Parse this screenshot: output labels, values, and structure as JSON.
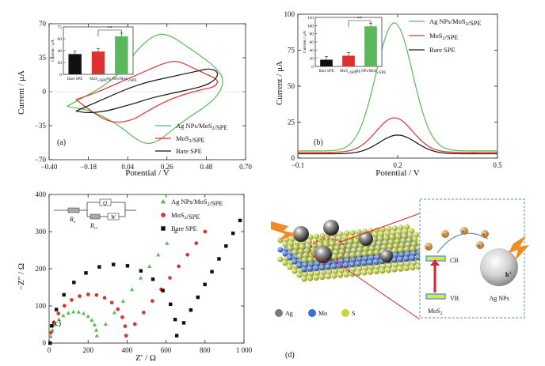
{
  "chart_data": [
    {
      "type": "line",
      "panel_label": "(a)",
      "xlabel": "Potential / V",
      "ylabel": "Current / μA",
      "xlim": [
        -0.4,
        0.7
      ],
      "ylim": [
        -70,
        70
      ],
      "xticks": [
        "−0.40",
        "−0.18",
        "0.04",
        "0.26",
        "0.48",
        "0.70"
      ],
      "yticks": [
        "−70",
        "−35",
        "0",
        "35",
        "70"
      ],
      "legend_position": "bottom-right",
      "series": [
        {
          "name": "Ag NPs/MoS₂/SPE",
          "color": "#5cb85c",
          "x": [
            -0.3,
            -0.2,
            -0.1,
            0.0,
            0.1,
            0.2,
            0.28,
            0.36,
            0.44,
            0.52,
            0.58,
            0.56,
            0.5,
            0.42,
            0.34,
            0.26,
            0.2,
            0.14,
            0.08,
            0.0,
            -0.1,
            -0.2,
            -0.28,
            -0.3
          ],
          "y": [
            -15,
            -5,
            5,
            20,
            45,
            60,
            58,
            48,
            38,
            27,
            14,
            0,
            -12,
            -22,
            -32,
            -44,
            -52,
            -54,
            -48,
            -36,
            -25,
            -18,
            -16,
            -15
          ]
        },
        {
          "name": "MoS₂/SPE",
          "color": "#e0302b",
          "x": [
            -0.25,
            -0.15,
            -0.05,
            0.05,
            0.15,
            0.25,
            0.32,
            0.4,
            0.48,
            0.55,
            0.53,
            0.45,
            0.35,
            0.25,
            0.15,
            0.08,
            0.0,
            -0.08,
            -0.18,
            -0.25
          ],
          "y": [
            -8,
            -2,
            6,
            14,
            22,
            30,
            32,
            25,
            18,
            12,
            5,
            2,
            -3,
            -10,
            -20,
            -28,
            -32,
            -30,
            -18,
            -8
          ]
        },
        {
          "name": "Bare SPE",
          "color": "#111111",
          "x": [
            -0.25,
            -0.15,
            -0.05,
            0.05,
            0.15,
            0.25,
            0.35,
            0.45,
            0.5,
            0.55,
            0.53,
            0.47,
            0.38,
            0.28,
            0.18,
            0.08,
            0.0,
            -0.08,
            -0.18,
            -0.25
          ],
          "y": [
            -20,
            -12,
            -4,
            4,
            10,
            14,
            18,
            22,
            24,
            20,
            12,
            6,
            2,
            -2,
            -6,
            -12,
            -16,
            -20,
            -22,
            -20
          ]
        }
      ],
      "inset": {
        "type": "bar",
        "ylabel": "Current / μA",
        "categories": [
          "Bare SPE",
          "MoS₂/SPE",
          "Ag NPs/MoS₂/SPE"
        ],
        "values": [
          32,
          36,
          60
        ],
        "ylim": [
          0,
          75
        ],
        "yticks": [
          "0",
          "20",
          "40",
          "60",
          "75"
        ],
        "colors": [
          "#111111",
          "#e0302b",
          "#5cb85c"
        ],
        "annotation": "**"
      }
    },
    {
      "type": "line",
      "panel_label": "(b)",
      "xlabel": "Potential / V",
      "ylabel": "Current / μA",
      "xlim": [
        -0.1,
        0.5
      ],
      "ylim": [
        0,
        100
      ],
      "xticks": [
        "−0.1",
        "0.2",
        "0.5"
      ],
      "yticks": [
        "0",
        "25",
        "50",
        "75",
        "100"
      ],
      "legend_position": "top-right",
      "series": [
        {
          "name": "Ag NPs/MoS₂/SPE",
          "color": "#5cb85c",
          "peak_x": 0.19,
          "peak_y": 94,
          "base": 5
        },
        {
          "name": "MoS₂/SPE",
          "color": "#e0302b",
          "peak_x": 0.19,
          "peak_y": 28,
          "base": 4
        },
        {
          "name": "Bare SPE",
          "color": "#111111",
          "peak_x": 0.2,
          "peak_y": 16,
          "base": 3
        }
      ],
      "inset": {
        "type": "bar",
        "ylabel": "Current / μA",
        "categories": [
          "Bare SPE",
          "MoS₂/SPE",
          "Ag NPs/MoS₂/SPE"
        ],
        "values": [
          15,
          24,
          90
        ],
        "ylim": [
          0,
          110
        ],
        "yticks": [
          "0",
          "20",
          "40",
          "60",
          "80",
          "100",
          "110"
        ],
        "colors": [
          "#111111",
          "#e0302b",
          "#5cb85c"
        ],
        "annotation": "**"
      }
    },
    {
      "type": "scatter",
      "panel_label": "(c)",
      "xlabel": "Z′ / Ω",
      "ylabel": "−Z″ / Ω",
      "xlim": [
        0,
        1000
      ],
      "ylim": [
        0,
        400
      ],
      "xticks": [
        "0",
        "200",
        "400",
        "600",
        "800",
        "1 000"
      ],
      "yticks": [
        "0",
        "100",
        "200",
        "300",
        "400"
      ],
      "legend_position": "top-right",
      "circuit_labels": {
        "rs": "R",
        "rs_sub": "s",
        "rct": "R",
        "rct_sub": "ct",
        "q": "Q",
        "w": "W"
      },
      "series": [
        {
          "name": "Ag NPs/MoS₂/SPE",
          "color": "#5cb85c",
          "marker": "triangle",
          "rs": 5,
          "rct": 240,
          "slope_end": [
            650,
            300
          ]
        },
        {
          "name": "MoS₂/SPE",
          "color": "#e0302b",
          "marker": "circle",
          "rs": 5,
          "rct": 390,
          "slope_end": [
            800,
            300
          ]
        },
        {
          "name": "Bare SPE",
          "color": "#111111",
          "marker": "square",
          "rs": 5,
          "rct": 650,
          "slope_end": [
            980,
            330
          ]
        }
      ]
    }
  ],
  "diagram": {
    "panel_label": "(d)",
    "atom_legend": [
      {
        "label": "Ag",
        "color": "#7a7a7a"
      },
      {
        "label": "Mo",
        "color": "#3a6fd6"
      },
      {
        "label": "S",
        "color": "#c8d43c"
      }
    ],
    "energy_labels": {
      "cb": "CB",
      "vb": "VB",
      "material": "MoS",
      "material_sub": "2",
      "agnp": "Ag NPs",
      "hole": "h",
      "hole_sup": "+",
      "electron": "e",
      "electron_sup": "−"
    }
  }
}
